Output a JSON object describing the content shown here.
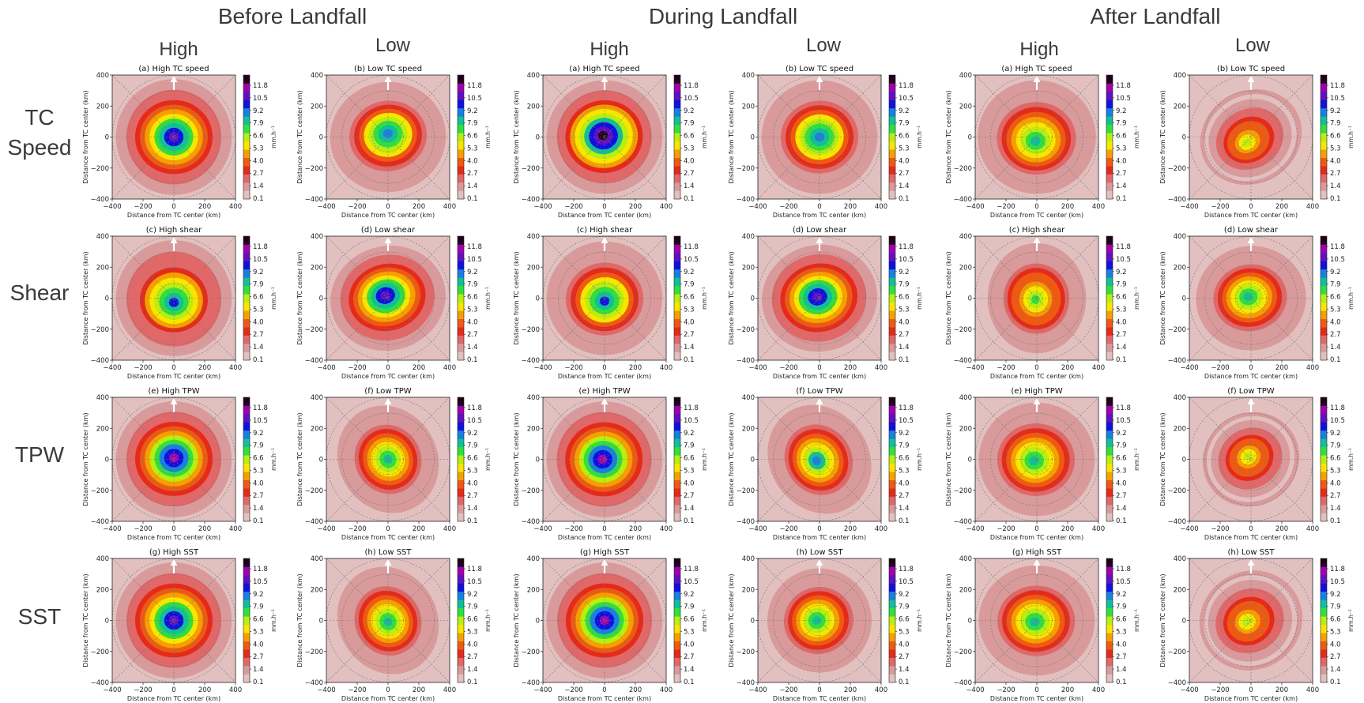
{
  "header": {
    "phases": [
      "Before Landfall",
      "During Landfall",
      "After Landfall"
    ],
    "levels": [
      "High",
      "Low",
      "High",
      "Low",
      "High",
      "Low"
    ]
  },
  "row_labels": [
    [
      "TC",
      "Speed"
    ],
    [
      "Shear"
    ],
    [
      "TPW"
    ],
    [
      "SST"
    ]
  ],
  "chart_data": {
    "type": "heatmap",
    "description_units": "composite rain rate, mm.h-1",
    "xlabel": "Distance from TC center (km)",
    "ylabel": "Distance from TC center (km)",
    "xlim": [
      -400,
      400
    ],
    "ylim": [
      -400,
      400
    ],
    "x_ticks": [
      -400,
      -200,
      0,
      200,
      400
    ],
    "y_ticks": [
      -400,
      -200,
      0,
      200,
      400
    ],
    "grid": true,
    "colorbar": {
      "unit": "mm.h⁻¹",
      "ticks": [
        "0.1",
        "1.4",
        "2.7",
        "4.0",
        "5.3",
        "6.6",
        "7.9",
        "9.2",
        "10.5",
        "11.8"
      ],
      "colors": [
        "#e2c0c0",
        "#d89a9a",
        "#e06868",
        "#e52a1a",
        "#ef5a12",
        "#f5a000",
        "#f8e600",
        "#b8ee10",
        "#30e040",
        "#10c098",
        "#1880e0",
        "#1010e0",
        "#6010c0",
        "#a000b0",
        "#20001a"
      ]
    },
    "panels": [
      {
        "row": 0,
        "col": 0,
        "title": "(a) High TC speed",
        "core_max_mm_h": 10.0
      },
      {
        "row": 0,
        "col": 1,
        "title": "(b) Low TC speed",
        "core_max_mm_h": 8.5
      },
      {
        "row": 0,
        "col": 2,
        "title": "(a) High TC speed",
        "core_max_mm_h": 11.5
      },
      {
        "row": 0,
        "col": 3,
        "title": "(b) Low TC speed",
        "core_max_mm_h": 8.5
      },
      {
        "row": 0,
        "col": 4,
        "title": "(a) High TC speed",
        "core_max_mm_h": 7.0
      },
      {
        "row": 0,
        "col": 5,
        "title": "(b) Low TC speed",
        "core_max_mm_h": 5.5
      },
      {
        "row": 1,
        "col": 0,
        "title": "(c) High shear",
        "core_max_mm_h": 8.8
      },
      {
        "row": 1,
        "col": 1,
        "title": "(d) Low shear",
        "core_max_mm_h": 10.0
      },
      {
        "row": 1,
        "col": 2,
        "title": "(c) High shear",
        "core_max_mm_h": 8.6
      },
      {
        "row": 1,
        "col": 3,
        "title": "(d) Low shear",
        "core_max_mm_h": 10.0
      },
      {
        "row": 1,
        "col": 4,
        "title": "(c) High shear",
        "core_max_mm_h": 6.8
      },
      {
        "row": 1,
        "col": 5,
        "title": "(d) Low shear",
        "core_max_mm_h": 7.0
      },
      {
        "row": 2,
        "col": 0,
        "title": "(e) High TPW",
        "core_max_mm_h": 10.5
      },
      {
        "row": 2,
        "col": 1,
        "title": "(f) Low TPW",
        "core_max_mm_h": 7.5
      },
      {
        "row": 2,
        "col": 2,
        "title": "(e) High TPW",
        "core_max_mm_h": 10.5
      },
      {
        "row": 2,
        "col": 3,
        "title": "(f) Low TPW",
        "core_max_mm_h": 8.0
      },
      {
        "row": 2,
        "col": 4,
        "title": "(e) High TPW",
        "core_max_mm_h": 7.2
      },
      {
        "row": 2,
        "col": 5,
        "title": "(f) Low TPW",
        "core_max_mm_h": 5.5
      },
      {
        "row": 3,
        "col": 0,
        "title": "(g) High SST",
        "core_max_mm_h": 10.0
      },
      {
        "row": 3,
        "col": 1,
        "title": "(h) Low SST",
        "core_max_mm_h": 7.5
      },
      {
        "row": 3,
        "col": 2,
        "title": "(g) High SST",
        "core_max_mm_h": 10.5
      },
      {
        "row": 3,
        "col": 3,
        "title": "(h) Low SST",
        "core_max_mm_h": 7.2
      },
      {
        "row": 3,
        "col": 4,
        "title": "(g) High SST",
        "core_max_mm_h": 7.0
      },
      {
        "row": 3,
        "col": 5,
        "title": "(h) Low SST",
        "core_max_mm_h": 5.5
      }
    ]
  }
}
